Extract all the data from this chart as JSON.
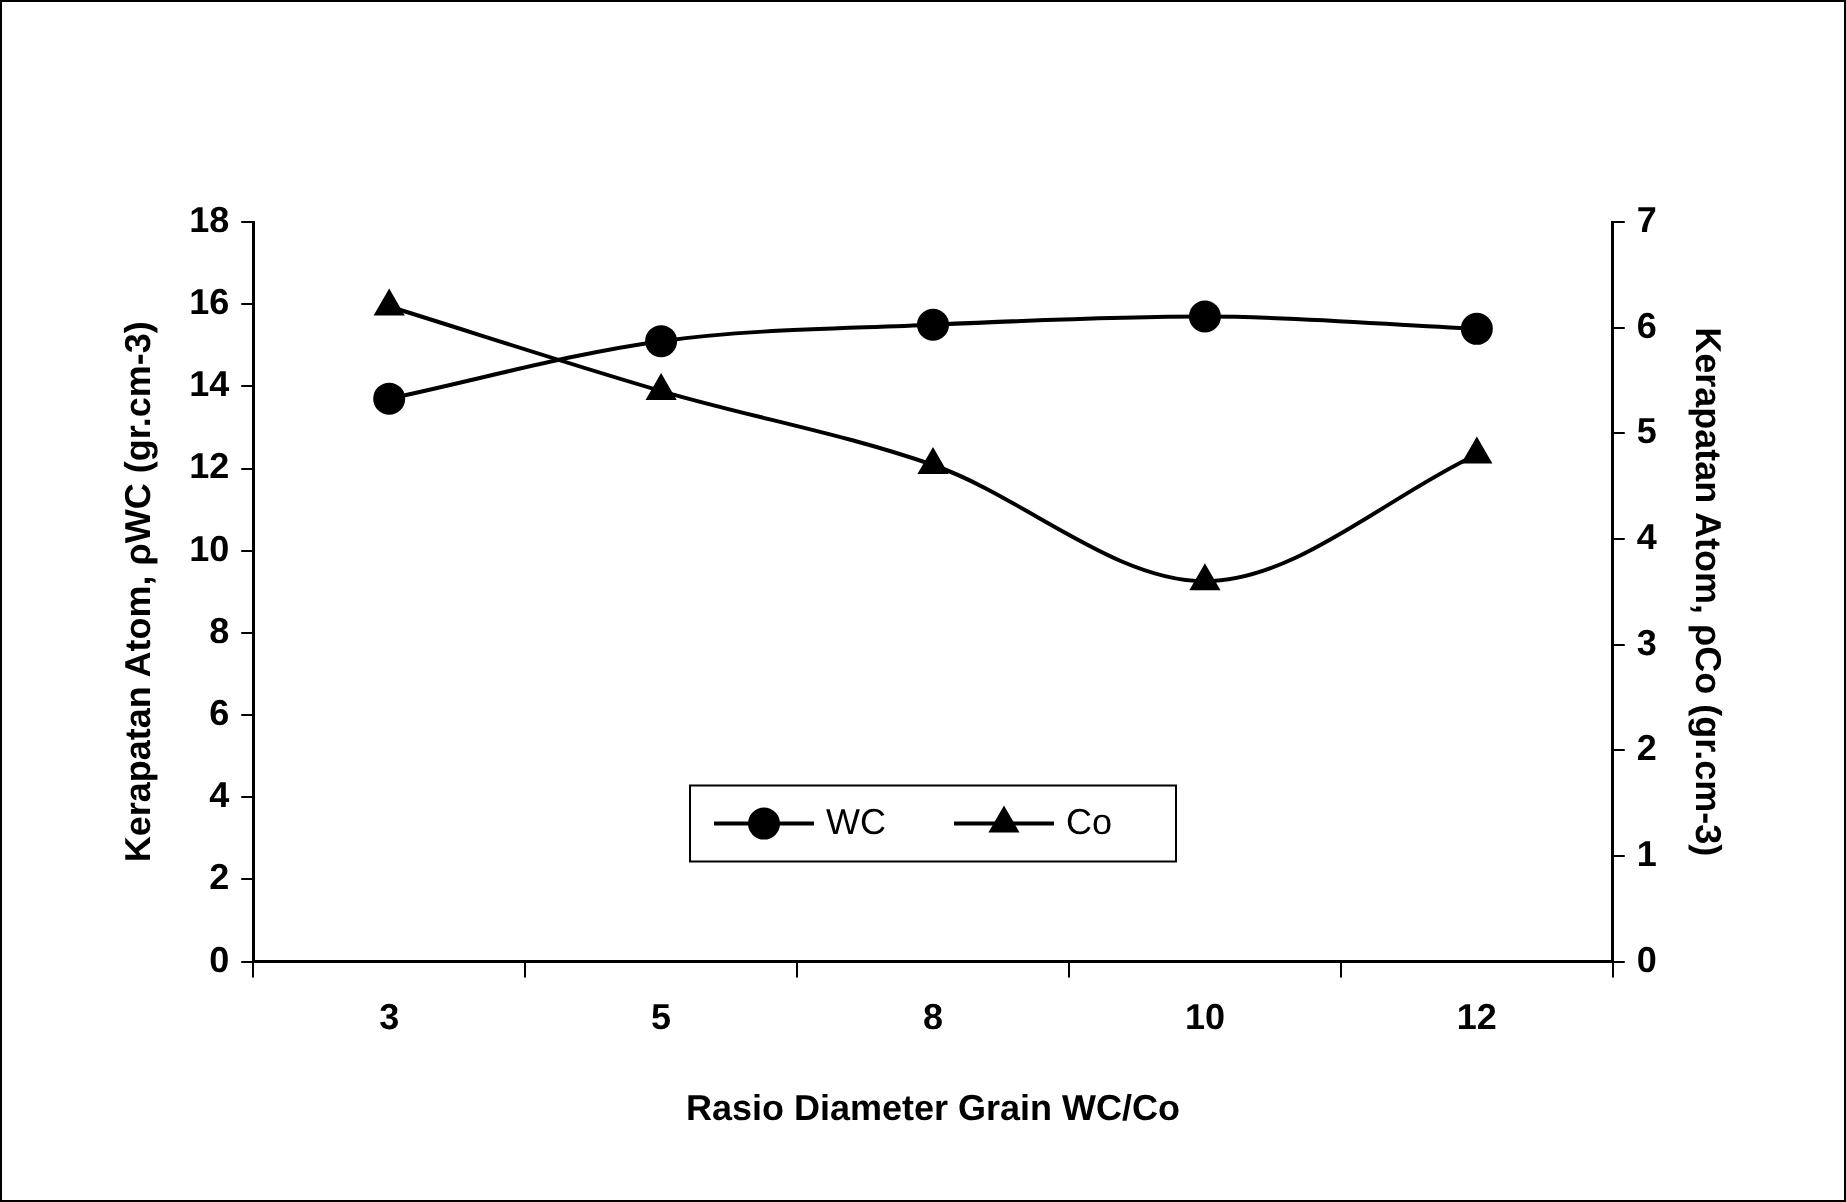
{
  "chart_data": {
    "type": "line",
    "xlabel": "Rasio Diameter Grain WC/Co",
    "ylabel": "Kerapatan Atom, ρWC (gr.cm-3)",
    "y2label": "Kerapatan Atom, ρCo (gr.cm-3)",
    "categories": [
      "3",
      "5",
      "8",
      "10",
      "12"
    ],
    "series": [
      {
        "name": "WC",
        "color": "#000000",
        "marker": "circle",
        "values": [
          13.7,
          15.1,
          15.5,
          15.7,
          15.4
        ]
      },
      {
        "name": "Co",
        "color": "#000000",
        "marker": "triangle",
        "axis": "y2",
        "values": [
          6.2,
          5.4,
          4.7,
          3.6,
          4.8
        ]
      }
    ],
    "ylim": [
      0,
      18
    ],
    "yticks": [
      0,
      2,
      4,
      6,
      8,
      10,
      12,
      14,
      16,
      18
    ],
    "y2lim": [
      0,
      7
    ],
    "y2ticks": [
      0,
      1,
      2,
      3,
      4,
      5,
      6,
      7
    ],
    "grid": false,
    "legend": "bottom"
  }
}
